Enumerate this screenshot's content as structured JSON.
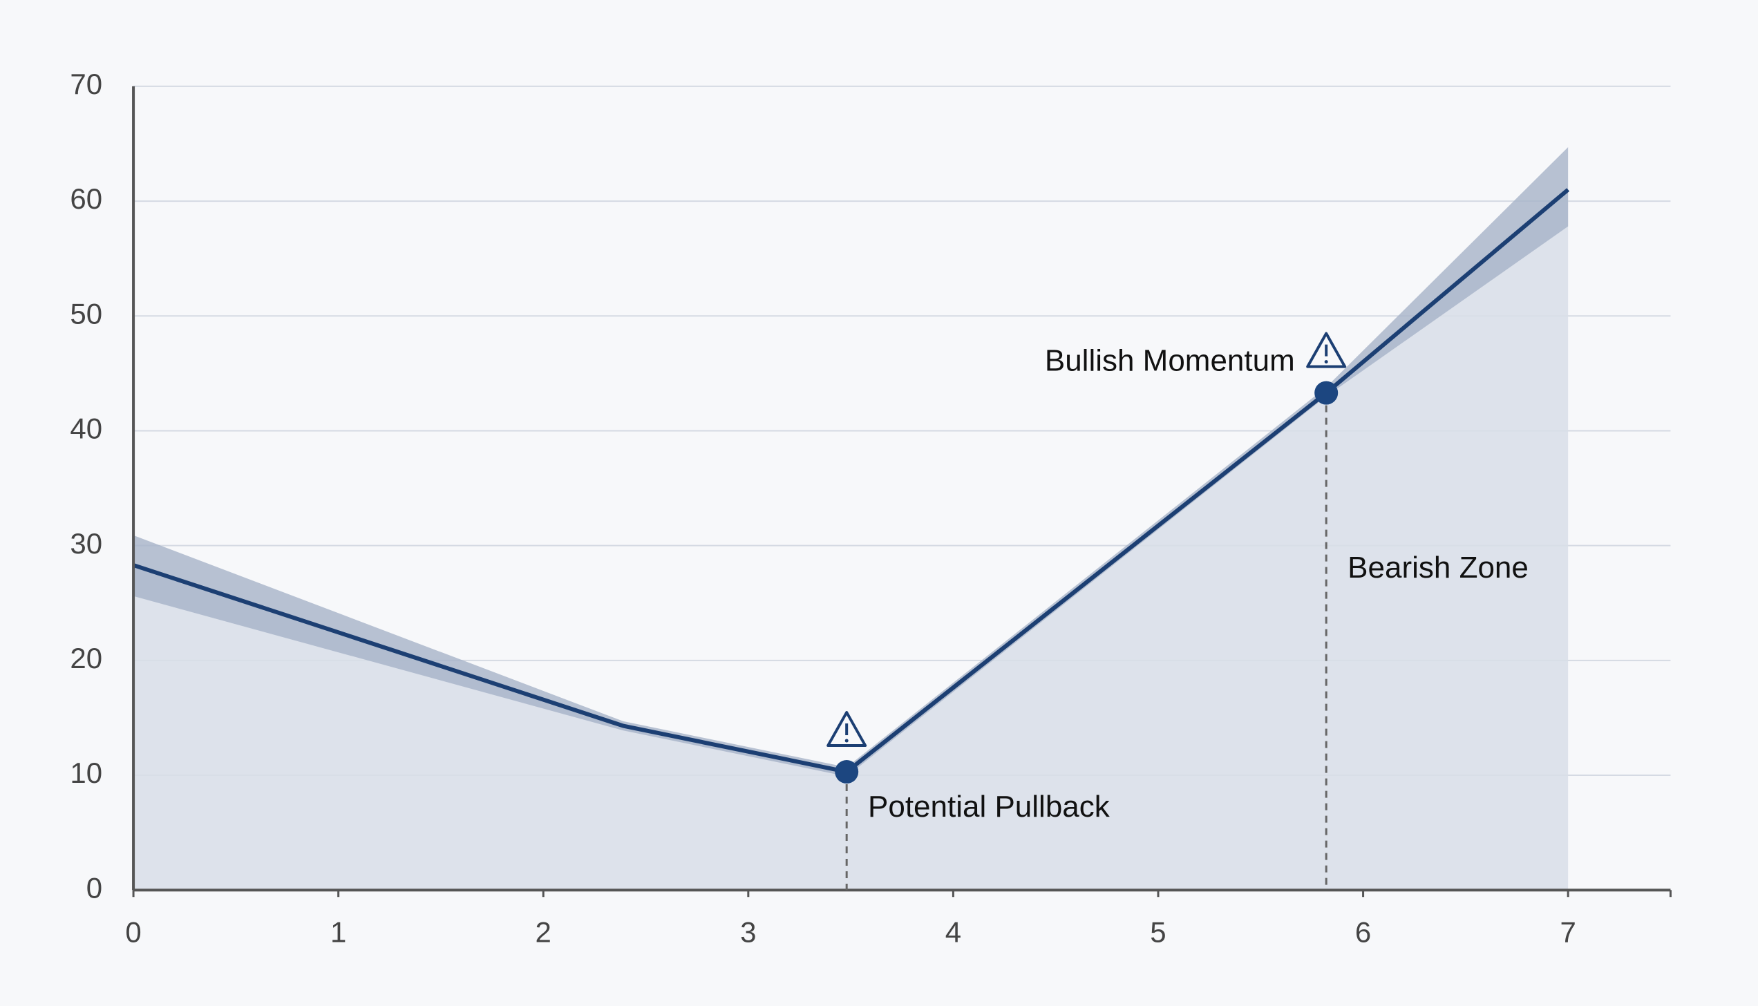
{
  "chart_data": {
    "type": "line",
    "x": [
      0,
      2.39,
      3.48,
      5.82,
      7
    ],
    "series": [
      {
        "color": "#1c3f73",
        "values": [
          28.3,
          14.3,
          10.3,
          43.3,
          61.0
        ]
      }
    ],
    "band": {
      "color": "#a6b3c8",
      "upper": [
        30.9,
        14.7,
        10.7,
        43.8,
        64.7
      ],
      "lower": [
        25.6,
        13.9,
        9.9,
        43.0,
        57.8
      ]
    },
    "area_color": "#d8dee8",
    "xlim": [
      0,
      7.5
    ],
    "xticks": [
      0,
      1,
      2,
      3,
      4,
      5,
      6,
      7
    ],
    "ylim": [
      0,
      70
    ],
    "yticks": [
      0,
      10,
      20,
      30,
      40,
      50,
      60,
      70
    ],
    "grid": true,
    "markers": [
      {
        "x": 3.48,
        "y": 10.3,
        "label": "Potential Pullback"
      },
      {
        "x": 5.82,
        "y": 43.3,
        "label": "Bullish Momentum"
      }
    ],
    "annotations": [
      "Bearish Zone"
    ]
  }
}
